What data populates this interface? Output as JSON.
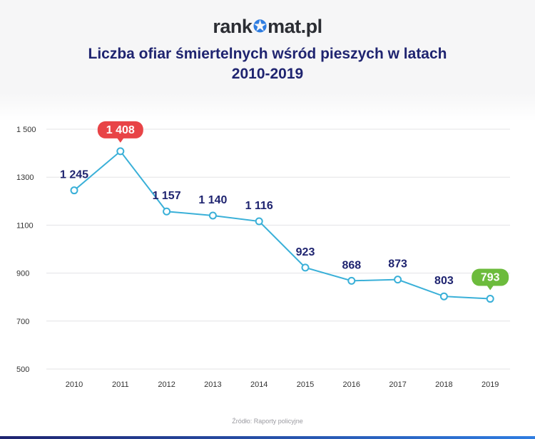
{
  "logo": {
    "prefix": "rank",
    "suffix": "mat.pl"
  },
  "title": {
    "line1": "Liczba ofiar śmiertelnych wśród pieszych w latach",
    "line2": "2010-2019"
  },
  "source": "Źródło: Raporty policyjne",
  "colors": {
    "line": "#3ab0d8",
    "label": "#1f2470",
    "max_badge": "#e84447",
    "min_badge": "#6cbb3c",
    "grid": "#e3e3e6",
    "tick": "#333333"
  },
  "chart_data": {
    "type": "line",
    "title": "Liczba ofiar śmiertelnych wśród pieszych w latach 2010-2019",
    "xlabel": "",
    "ylabel": "",
    "categories": [
      "2010",
      "2011",
      "2012",
      "2013",
      "2014",
      "2015",
      "2016",
      "2017",
      "2018",
      "2019"
    ],
    "values": [
      1245,
      1408,
      1157,
      1140,
      1116,
      923,
      868,
      873,
      803,
      793
    ],
    "value_labels": [
      "1 245",
      "1 408",
      "1 157",
      "1 140",
      "1 116",
      "923",
      "868",
      "873",
      "803",
      "793"
    ],
    "y_ticks": [
      500,
      700,
      900,
      1100,
      1300,
      1500
    ],
    "y_tick_labels": [
      "500",
      "700",
      "900",
      "1100",
      "1300",
      "1 500"
    ],
    "ylim": [
      500,
      1500
    ],
    "grid": true,
    "highlight_max_index": 1,
    "highlight_min_index": 9
  }
}
